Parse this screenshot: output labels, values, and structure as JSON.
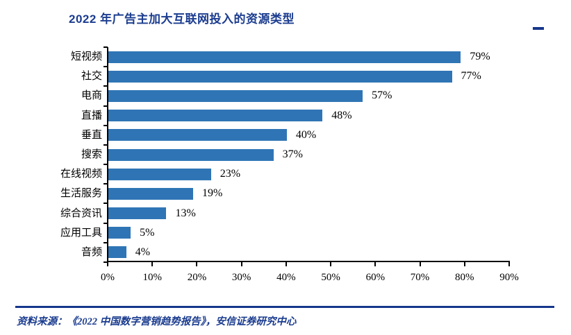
{
  "header": {
    "title": "2022 年广告主加大互联网投入的资源类型"
  },
  "chart_data": {
    "type": "bar",
    "orientation": "horizontal",
    "title": "2022 年广告主加大互联网投入的资源类型",
    "categories": [
      "短视频",
      "社交",
      "电商",
      "直播",
      "垂直",
      "搜索",
      "在线视频",
      "生活服务",
      "综合资讯",
      "应用工具",
      "音频"
    ],
    "values": [
      79,
      77,
      57,
      48,
      40,
      37,
      23,
      19,
      13,
      5,
      4
    ],
    "value_labels": [
      "79%",
      "77%",
      "57%",
      "48%",
      "40%",
      "37%",
      "23%",
      "19%",
      "13%",
      "5%",
      "4%"
    ],
    "x_tick_labels": [
      "0%",
      "10%",
      "20%",
      "30%",
      "40%",
      "50%",
      "60%",
      "70%",
      "80%",
      "90%"
    ],
    "x_tick_values": [
      0,
      10,
      20,
      30,
      40,
      50,
      60,
      70,
      80,
      90
    ],
    "xlim": [
      0,
      90
    ],
    "xlabel": "",
    "ylabel": "",
    "grid": false,
    "legend": "none",
    "bar_color": "#2f75b5"
  },
  "footer": {
    "source": "资料来源：《2022 中国数字营销趋势报告》，安信证券研究中心"
  },
  "colors": {
    "navy": "#1b3c8f",
    "bar": "#2f75b5",
    "axis": "#000000"
  }
}
